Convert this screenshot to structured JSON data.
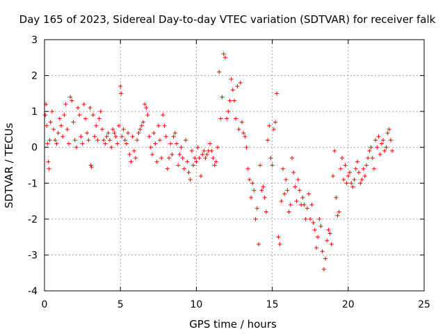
{
  "chart_data": {
    "type": "scatter",
    "title": "Day 165 of 2023, Sidereal Day-to-day VTEC variation (SDTVAR) for receiver falk",
    "xlabel": "GPS time / hours",
    "ylabel": "SDTVAR / TECUs",
    "xlim": [
      0,
      25
    ],
    "ylim": [
      -4,
      3
    ],
    "xticks": [
      "0",
      "5",
      "10",
      "15",
      "20",
      "25"
    ],
    "yticks": [
      "-4",
      "-3",
      "-2",
      "-1",
      "0",
      "1",
      "2",
      "3"
    ],
    "grid": true,
    "marker": "+",
    "color": "#ff0000",
    "series": [
      {
        "name": "falk",
        "points": [
          [
            0.05,
            0.9
          ],
          [
            0.1,
            1.2
          ],
          [
            0.15,
            0.6
          ],
          [
            0.2,
            0.1
          ],
          [
            0.25,
            -0.4
          ],
          [
            0.3,
            -0.6
          ],
          [
            0.35,
            0.2
          ],
          [
            0.4,
            0.7
          ],
          [
            0.5,
            1.0
          ],
          [
            0.6,
            0.5
          ],
          [
            0.7,
            0.2
          ],
          [
            0.8,
            0.1
          ],
          [
            0.9,
            0.4
          ],
          [
            1.0,
            0.8
          ],
          [
            1.1,
            0.6
          ],
          [
            1.2,
            0.3
          ],
          [
            1.3,
            0.9
          ],
          [
            1.4,
            1.2
          ],
          [
            1.5,
            0.5
          ],
          [
            1.6,
            0.1
          ],
          [
            1.7,
            1.4
          ],
          [
            1.8,
            1.3
          ],
          [
            1.9,
            0.7
          ],
          [
            2.0,
            0.2
          ],
          [
            2.1,
            0.0
          ],
          [
            2.2,
            1.1
          ],
          [
            2.3,
            0.9
          ],
          [
            2.4,
            0.3
          ],
          [
            2.5,
            0.1
          ],
          [
            2.6,
            1.2
          ],
          [
            2.7,
            0.8
          ],
          [
            2.8,
            0.4
          ],
          [
            2.9,
            0.2
          ],
          [
            3.0,
            1.1
          ],
          [
            3.05,
            -0.5
          ],
          [
            3.1,
            -0.55
          ],
          [
            3.2,
            0.9
          ],
          [
            3.3,
            0.3
          ],
          [
            3.4,
            0.6
          ],
          [
            3.5,
            0.2
          ],
          [
            3.6,
            0.8
          ],
          [
            3.7,
            1.0
          ],
          [
            3.8,
            0.5
          ],
          [
            3.9,
            0.2
          ],
          [
            4.0,
            0.1
          ],
          [
            4.1,
            0.3
          ],
          [
            4.2,
            0.4
          ],
          [
            4.3,
            0.2
          ],
          [
            4.4,
            0.0
          ],
          [
            4.5,
            0.5
          ],
          [
            4.6,
            0.4
          ],
          [
            4.7,
            0.3
          ],
          [
            4.8,
            0.1
          ],
          [
            4.9,
            0.6
          ],
          [
            5.0,
            1.7
          ],
          [
            5.05,
            1.5
          ],
          [
            5.1,
            0.3
          ],
          [
            5.2,
            0.5
          ],
          [
            5.3,
            0.2
          ],
          [
            5.4,
            0.1
          ],
          [
            5.5,
            0.4
          ],
          [
            5.6,
            -0.2
          ],
          [
            5.7,
            -0.4
          ],
          [
            5.8,
            0.3
          ],
          [
            5.9,
            -0.1
          ],
          [
            6.0,
            -0.3
          ],
          [
            6.1,
            0.2
          ],
          [
            6.2,
            0.4
          ],
          [
            6.3,
            0.5
          ],
          [
            6.4,
            0.6
          ],
          [
            6.5,
            0.7
          ],
          [
            6.6,
            1.2
          ],
          [
            6.7,
            1.1
          ],
          [
            6.8,
            0.9
          ],
          [
            6.9,
            0.3
          ],
          [
            7.0,
            0.0
          ],
          [
            7.1,
            -0.2
          ],
          [
            7.2,
            0.4
          ],
          [
            7.3,
            0.1
          ],
          [
            7.4,
            -0.4
          ],
          [
            7.5,
            0.6
          ],
          [
            7.6,
            0.2
          ],
          [
            7.7,
            -0.3
          ],
          [
            7.8,
            0.9
          ],
          [
            7.9,
            0.6
          ],
          [
            8.0,
            0.3
          ],
          [
            8.1,
            -0.6
          ],
          [
            8.2,
            -0.3
          ],
          [
            8.3,
            0.1
          ],
          [
            8.4,
            -0.2
          ],
          [
            8.5,
            0.3
          ],
          [
            8.6,
            0.4
          ],
          [
            8.7,
            0.1
          ],
          [
            8.8,
            -0.5
          ],
          [
            8.9,
            -0.2
          ],
          [
            9.0,
            0.0
          ],
          [
            9.1,
            -0.3
          ],
          [
            9.2,
            -0.6
          ],
          [
            9.3,
            0.2
          ],
          [
            9.4,
            -0.4
          ],
          [
            9.5,
            -0.7
          ],
          [
            9.6,
            -0.9
          ],
          [
            9.7,
            -0.1
          ],
          [
            9.8,
            -0.5
          ],
          [
            9.9,
            -0.3
          ],
          [
            10.0,
            -0.4
          ],
          [
            10.1,
            0.0
          ],
          [
            10.2,
            -0.3
          ],
          [
            10.3,
            -0.8
          ],
          [
            10.4,
            -0.2
          ],
          [
            10.5,
            -0.1
          ],
          [
            10.6,
            -0.3
          ],
          [
            10.7,
            -0.2
          ],
          [
            10.8,
            -0.1
          ],
          [
            10.9,
            0.1
          ],
          [
            11.0,
            -0.1
          ],
          [
            11.1,
            -0.3
          ],
          [
            11.2,
            -0.5
          ],
          [
            11.3,
            -0.4
          ],
          [
            11.4,
            0.0
          ],
          [
            11.5,
            2.1
          ],
          [
            11.6,
            0.8
          ],
          [
            11.7,
            1.4
          ],
          [
            11.8,
            2.6
          ],
          [
            11.9,
            2.5
          ],
          [
            12.0,
            0.8
          ],
          [
            12.1,
            1.0
          ],
          [
            12.2,
            1.3
          ],
          [
            12.3,
            1.9
          ],
          [
            12.4,
            1.6
          ],
          [
            12.5,
            1.3
          ],
          [
            12.6,
            0.8
          ],
          [
            12.7,
            1.7
          ],
          [
            12.8,
            0.5
          ],
          [
            12.9,
            1.8
          ],
          [
            13.0,
            0.7
          ],
          [
            13.1,
            0.4
          ],
          [
            13.2,
            0.3
          ],
          [
            13.3,
            0.0
          ],
          [
            13.4,
            -0.6
          ],
          [
            13.5,
            -0.9
          ],
          [
            13.6,
            -1.4
          ],
          [
            13.7,
            -1.0
          ],
          [
            13.8,
            -1.2
          ],
          [
            13.9,
            -2.0
          ],
          [
            14.0,
            -1.7
          ],
          [
            14.1,
            -2.7
          ],
          [
            14.2,
            -0.5
          ],
          [
            14.3,
            -1.2
          ],
          [
            14.4,
            -1.1
          ],
          [
            14.5,
            -1.4
          ],
          [
            14.6,
            -1.8
          ],
          [
            14.7,
            0.2
          ],
          [
            14.8,
            0.6
          ],
          [
            14.9,
            -0.3
          ],
          [
            15.0,
            -0.5
          ],
          [
            15.1,
            0.5
          ],
          [
            15.2,
            0.7
          ],
          [
            15.3,
            1.5
          ],
          [
            15.4,
            -2.5
          ],
          [
            15.5,
            -2.7
          ],
          [
            15.6,
            -1.5
          ],
          [
            15.7,
            -0.6
          ],
          [
            15.8,
            -1.3
          ],
          [
            15.9,
            -0.9
          ],
          [
            16.0,
            -1.2
          ],
          [
            16.1,
            -1.8
          ],
          [
            16.2,
            -1.6
          ],
          [
            16.3,
            -0.3
          ],
          [
            16.4,
            -0.7
          ],
          [
            16.5,
            -1.1
          ],
          [
            16.6,
            -1.5
          ],
          [
            16.7,
            -0.9
          ],
          [
            16.8,
            -1.2
          ],
          [
            16.9,
            -1.6
          ],
          [
            17.0,
            -1.4
          ],
          [
            17.1,
            -1.6
          ],
          [
            17.2,
            -2.0
          ],
          [
            17.3,
            -1.7
          ],
          [
            17.4,
            -1.3
          ],
          [
            17.5,
            -2.0
          ],
          [
            17.6,
            -1.6
          ],
          [
            17.7,
            -2.1
          ],
          [
            17.8,
            -2.3
          ],
          [
            17.9,
            -2.8
          ],
          [
            18.0,
            -2.5
          ],
          [
            18.1,
            -2.0
          ],
          [
            18.2,
            -2.2
          ],
          [
            18.3,
            -2.9
          ],
          [
            18.4,
            -3.4
          ],
          [
            18.5,
            -3.1
          ],
          [
            18.6,
            -2.6
          ],
          [
            18.7,
            -2.3
          ],
          [
            18.8,
            -2.4
          ],
          [
            18.9,
            -2.7
          ],
          [
            19.0,
            -0.8
          ],
          [
            19.1,
            -0.1
          ],
          [
            19.2,
            -1.4
          ],
          [
            19.3,
            -1.9
          ],
          [
            19.4,
            -1.8
          ],
          [
            19.5,
            -0.6
          ],
          [
            19.6,
            -0.3
          ],
          [
            19.7,
            -0.9
          ],
          [
            19.8,
            -0.5
          ],
          [
            19.9,
            -1.0
          ],
          [
            20.0,
            -0.8
          ],
          [
            20.1,
            -0.7
          ],
          [
            20.2,
            -1.0
          ],
          [
            20.3,
            -1.1
          ],
          [
            20.4,
            -0.9
          ],
          [
            20.5,
            -0.6
          ],
          [
            20.6,
            -0.4
          ],
          [
            20.7,
            -0.7
          ],
          [
            20.8,
            -1.0
          ],
          [
            20.9,
            -0.9
          ],
          [
            21.0,
            -0.6
          ],
          [
            21.1,
            -0.8
          ],
          [
            21.2,
            -0.5
          ],
          [
            21.3,
            -0.3
          ],
          [
            21.4,
            -0.1
          ],
          [
            21.5,
            0.0
          ],
          [
            21.6,
            -0.3
          ],
          [
            21.7,
            -0.6
          ],
          [
            21.8,
            0.2
          ],
          [
            21.9,
            0.0
          ],
          [
            22.0,
            0.3
          ],
          [
            22.1,
            -0.2
          ],
          [
            22.2,
            0.1
          ],
          [
            22.3,
            0.2
          ],
          [
            22.4,
            -0.1
          ],
          [
            22.5,
            0.0
          ],
          [
            22.6,
            0.4
          ],
          [
            22.7,
            0.5
          ],
          [
            22.8,
            0.2
          ],
          [
            22.9,
            -0.1
          ]
        ]
      }
    ]
  }
}
